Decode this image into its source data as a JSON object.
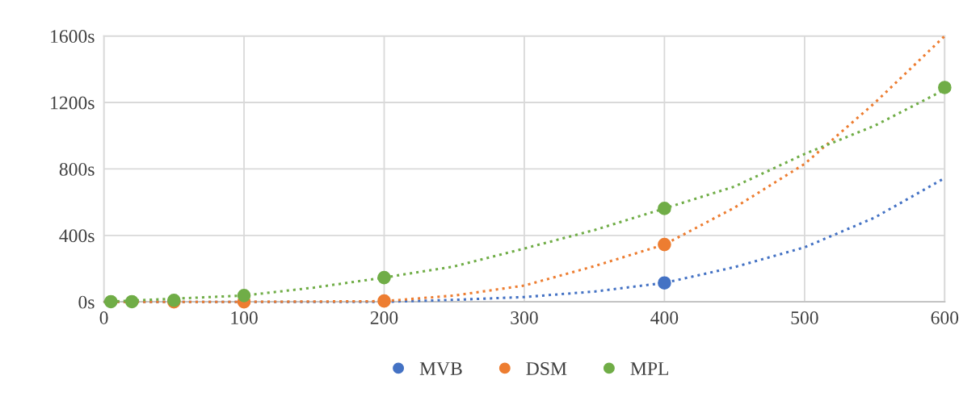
{
  "chart_data": {
    "type": "scatter",
    "x": [
      5,
      20,
      50,
      100,
      200,
      400,
      600
    ],
    "series": [
      {
        "name": "MVB",
        "color": "#4472c4",
        "values": [
          null,
          null,
          null,
          null,
          null,
          114,
          null
        ]
      },
      {
        "name": "DSM",
        "color": "#ed7d31",
        "values": [
          null,
          null,
          0,
          0,
          5,
          345,
          null
        ]
      },
      {
        "name": "MPL",
        "color": "#70ad47",
        "values": [
          1,
          1,
          9,
          38,
          146,
          562,
          1290
        ]
      },
      {
        "type": "line",
        "color": "#4472c4",
        "marker": "none",
        "line_style": "dotted",
        "x": [
          0,
          100,
          200,
          250,
          300,
          350,
          400,
          450,
          500,
          550,
          600
        ],
        "values": [
          0,
          0,
          0,
          12,
          29,
          62,
          114,
          209,
          328,
          507,
          745
        ]
      },
      {
        "type": "line",
        "color": "#ed7d31",
        "marker": "none",
        "line_style": "dotted",
        "x": [
          0,
          100,
          200,
          250,
          300,
          350,
          400,
          450,
          500,
          550,
          600
        ],
        "values": [
          0,
          0,
          4,
          38,
          98,
          215,
          345,
          567,
          830,
          1197,
          1600
        ]
      },
      {
        "type": "line",
        "color": "#70ad47",
        "marker": "none",
        "line_style": "dotted",
        "x": [
          0,
          100,
          150,
          200,
          250,
          300,
          350,
          400,
          450,
          500,
          550,
          600
        ],
        "values": [
          0,
          38,
          86,
          146,
          213,
          321,
          432,
          562,
          694,
          890,
          1060,
          1277
        ]
      }
    ],
    "xlim": [
      0,
      600
    ],
    "xticks": [
      0,
      100,
      200,
      300,
      400,
      500,
      600
    ],
    "ylim": [
      0,
      1600
    ],
    "yticks": [
      {
        "value": 0,
        "label": "0s"
      },
      {
        "value": 400,
        "label": "400s"
      },
      {
        "value": 800,
        "label": "800s"
      },
      {
        "value": 1200,
        "label": "1200s"
      },
      {
        "value": 1600,
        "label": "1600s"
      }
    ],
    "grid": true,
    "legend": "bottom",
    "marker": "circle"
  }
}
